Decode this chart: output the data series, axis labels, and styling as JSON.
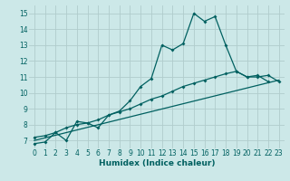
{
  "xlabel": "Humidex (Indice chaleur)",
  "background_color": "#cce8e8",
  "grid_color": "#b0cccc",
  "line_color": "#006060",
  "xlim": [
    -0.5,
    23.5
  ],
  "ylim": [
    6.5,
    15.5
  ],
  "xticks": [
    0,
    1,
    2,
    3,
    4,
    5,
    6,
    7,
    8,
    9,
    10,
    11,
    12,
    13,
    14,
    15,
    16,
    17,
    18,
    19,
    20,
    21,
    22,
    23
  ],
  "yticks": [
    7,
    8,
    9,
    10,
    11,
    12,
    13,
    14,
    15
  ],
  "series1_x": [
    0,
    1,
    2,
    3,
    4,
    5,
    6,
    7,
    8,
    9,
    10,
    11,
    12,
    13,
    14,
    15,
    16,
    17,
    18,
    19,
    20,
    21,
    22
  ],
  "series1_y": [
    6.8,
    6.9,
    7.5,
    7.0,
    8.2,
    8.1,
    7.8,
    8.6,
    8.85,
    9.5,
    10.4,
    10.9,
    13.0,
    12.7,
    13.1,
    15.0,
    14.5,
    14.8,
    13.0,
    11.35,
    11.0,
    11.1,
    10.7
  ],
  "series2_x": [
    0,
    1,
    2,
    3,
    4,
    5,
    6,
    7,
    8,
    9,
    10,
    11,
    12,
    13,
    14,
    15,
    16,
    17,
    18,
    19,
    20,
    21,
    22,
    23
  ],
  "series2_y": [
    7.2,
    7.3,
    7.5,
    7.8,
    8.0,
    8.1,
    8.3,
    8.6,
    8.8,
    9.0,
    9.3,
    9.6,
    9.8,
    10.1,
    10.4,
    10.6,
    10.8,
    11.0,
    11.2,
    11.35,
    11.0,
    11.0,
    11.1,
    10.7
  ],
  "series3_x": [
    0,
    23
  ],
  "series3_y": [
    7.0,
    10.8
  ]
}
